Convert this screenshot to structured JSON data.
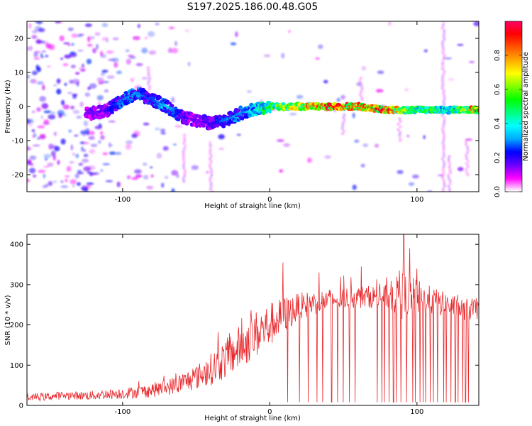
{
  "figure": {
    "title": "S197.2025.186.00.48.G05"
  },
  "colors": {
    "snr_line": "#e8272b",
    "spectrum_colormap": [
      "#ffffff",
      "#ff00ff",
      "#6a00ff",
      "#0000ff",
      "#00aaff",
      "#00ffff",
      "#00ff80",
      "#00ff00",
      "#80ff00",
      "#ffff00",
      "#ffaa00",
      "#ff5500",
      "#ff0000",
      "#ff0066"
    ]
  },
  "chart_data": [
    {
      "type": "heatmap",
      "title": "S197.2025.186.00.48.G05",
      "xlabel": "Height of straight line (km)",
      "ylabel": "Frequency (Hz)",
      "xlim": [
        -165,
        142
      ],
      "ylim": [
        -25,
        25
      ],
      "xticks": [
        -100,
        0,
        100
      ],
      "xtick_labels": [
        "-100",
        "0",
        "100"
      ],
      "yticks": [
        20,
        10,
        0,
        -10,
        -20
      ],
      "ytick_labels": [
        "20",
        "10",
        "0",
        "-10",
        "-20"
      ],
      "colorbar": {
        "label": "Normalized spectral amplitude",
        "range": [
          0,
          1
        ],
        "ticks": [
          0.0,
          0.2,
          0.4,
          0.6,
          0.8
        ],
        "tick_labels": [
          "0.0",
          "0.2",
          "0.4",
          "0.6",
          "0.8"
        ]
      },
      "ridge": {
        "description_points_x": [
          -120,
          -110,
          -100,
          -90,
          -80,
          -70,
          -60,
          -50,
          -40,
          -30,
          -20,
          -10,
          0,
          20,
          40,
          60,
          80,
          90,
          100,
          110,
          120,
          130,
          140
        ],
        "frequency_hz": [
          -2,
          -1,
          2,
          4,
          2,
          0,
          -3,
          -4,
          -5,
          -4,
          -2,
          -1,
          0,
          0,
          0,
          0,
          -1,
          -1,
          -1,
          -1,
          -1,
          -1,
          -1
        ],
        "amplitude": [
          0.15,
          0.2,
          0.3,
          0.3,
          0.25,
          0.35,
          0.2,
          0.15,
          0.2,
          0.3,
          0.3,
          0.4,
          0.55,
          0.75,
          0.9,
          0.85,
          0.95,
          0.7,
          0.5,
          0.6,
          0.4,
          0.6,
          0.9
        ]
      },
      "grid": false,
      "legend": "colorbar right"
    },
    {
      "type": "line",
      "xlabel": "Height of straight line (km)",
      "ylabel": "SNR (10 * v/v)",
      "xlim": [
        -165,
        142
      ],
      "ylim": [
        0,
        425
      ],
      "xticks": [
        -100,
        0,
        100
      ],
      "xtick_labels": [
        "-100",
        "0",
        "100"
      ],
      "yticks": [
        0,
        100,
        200,
        300,
        400
      ],
      "ytick_labels": [
        "0",
        "100",
        "200",
        "300",
        "400"
      ],
      "series": [
        {
          "x": [
            -165,
            -150,
            -140,
            -130,
            -120,
            -110,
            -100,
            -90,
            -80,
            -70,
            -60,
            -50,
            -40,
            -30,
            -20,
            -10,
            0,
            10,
            20,
            30,
            40,
            50,
            60,
            70,
            80,
            90,
            100,
            110,
            120,
            130,
            142
          ],
          "y": [
            20,
            22,
            25,
            24,
            25,
            28,
            30,
            33,
            38,
            45,
            55,
            70,
            90,
            115,
            145,
            175,
            200,
            225,
            245,
            255,
            262,
            265,
            268,
            270,
            270,
            272,
            268,
            260,
            250,
            240,
            238
          ],
          "noise_amplitude": [
            10,
            10,
            10,
            10,
            12,
            12,
            14,
            15,
            18,
            20,
            25,
            30,
            40,
            50,
            55,
            60,
            55,
            45,
            35,
            30,
            28,
            28,
            28,
            28,
            30,
            60,
            45,
            35,
            30,
            28,
            28
          ]
        }
      ],
      "spikes": [
        {
          "x": 9,
          "y": 355
        },
        {
          "x": 62,
          "y": 345
        },
        {
          "x": 91,
          "y": 425
        },
        {
          "x": 95,
          "y": 390
        },
        {
          "x": 88,
          "y": 335
        },
        {
          "x": 100,
          "y": 340
        }
      ],
      "dropouts_x": [
        12,
        20,
        26,
        32,
        36,
        42,
        46,
        50,
        54,
        58,
        73,
        76,
        78,
        81,
        84,
        86,
        89,
        93,
        97,
        99,
        102,
        104,
        106,
        109,
        111,
        114,
        118,
        120,
        123,
        126,
        128,
        131,
        133,
        135
      ],
      "grid": false,
      "legend": "none"
    }
  ]
}
